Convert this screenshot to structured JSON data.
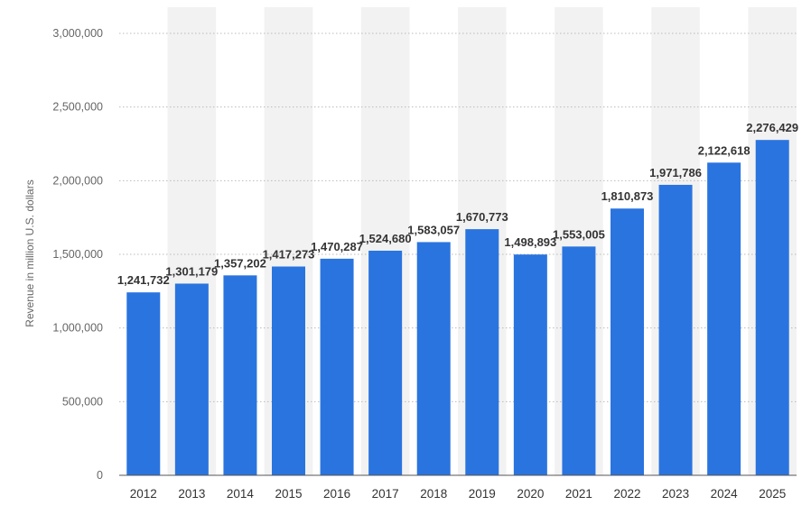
{
  "chart_data": {
    "type": "bar",
    "title": "",
    "xlabel": "",
    "ylabel": "Revenue in million U.S. dollars",
    "ylim": [
      0,
      3000000
    ],
    "yticks": [
      0,
      500000,
      1000000,
      1500000,
      2000000,
      2500000,
      3000000
    ],
    "ytick_labels": [
      "0",
      "500,000",
      "1,000,000",
      "1,500,000",
      "2,000,000",
      "2,500,000",
      "3,000,000"
    ],
    "grid": true,
    "categories": [
      "2012",
      "2013",
      "2014",
      "2015",
      "2016",
      "2017",
      "2018",
      "2019",
      "2020",
      "2021",
      "2022",
      "2023",
      "2024",
      "2025"
    ],
    "values": [
      1241732,
      1301179,
      1357202,
      1417273,
      1470287,
      1524680,
      1583057,
      1670773,
      1498893,
      1553005,
      1810873,
      1971786,
      2122618,
      2276429
    ],
    "value_labels": [
      "1,241,732",
      "1,301,179",
      "1,357,202",
      "1,417,273",
      "1,470,287",
      "1,524,680",
      "1,583,057",
      "1,670,773",
      "1,498,893",
      "1,553,005",
      "1,810,873",
      "1,971,786",
      "2,122,618",
      "2,276,429"
    ],
    "bar_color": "#2a74df",
    "band_color": "#f2f2f2",
    "grid_color": "#bbbbbb"
  }
}
